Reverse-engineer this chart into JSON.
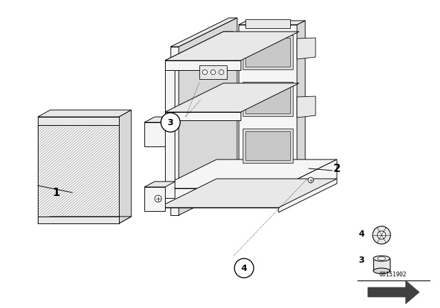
{
  "background_color": "#ffffff",
  "line_color": "#000000",
  "diagram_id": "00151902",
  "figsize": [
    6.4,
    4.48
  ],
  "dpi": 100,
  "lw": 0.7,
  "speaker_hatch_color": "#555555",
  "face_light": "#f5f5f5",
  "face_mid": "#e8e8e8",
  "face_dark": "#d8d8d8",
  "face_darker": "#c8c8c8"
}
